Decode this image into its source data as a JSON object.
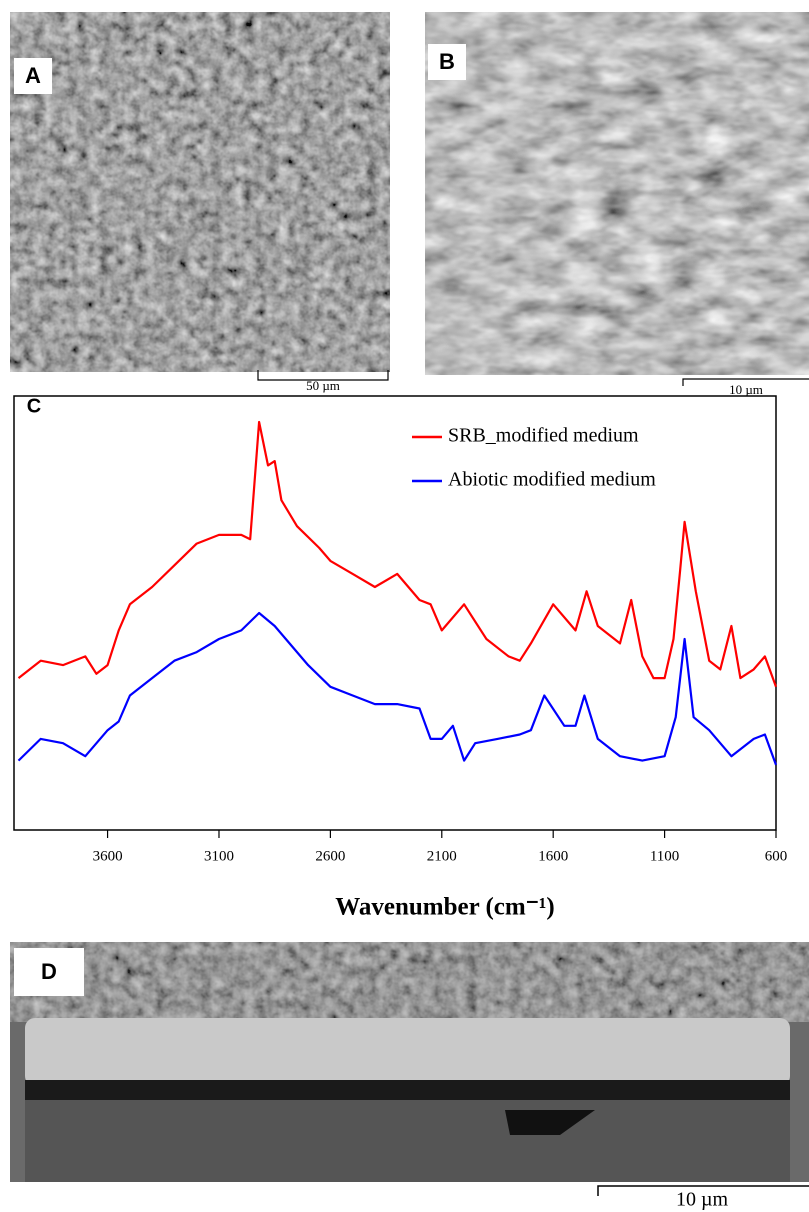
{
  "panels": [
    {
      "label": "A",
      "scale_bar": "50 µm"
    },
    {
      "label": "B",
      "scale_bar": "10 µm"
    },
    {
      "label": "D",
      "scale_bar": "10 µm"
    }
  ],
  "chart_data": {
    "type": "line",
    "panel_label": "C",
    "x_label": "Wavenumber (cm⁻¹)",
    "xlim": [
      4020,
      600
    ],
    "xticks": [
      3600,
      3100,
      2600,
      2100,
      1600,
      1100,
      600
    ],
    "ylim": [
      0,
      100
    ],
    "series": [
      {
        "name": "SRB_modified medium",
        "color": "#ff0000",
        "x": [
          4000,
          3900,
          3800,
          3700,
          3650,
          3600,
          3550,
          3500,
          3400,
          3300,
          3200,
          3100,
          3000,
          2960,
          2920,
          2880,
          2850,
          2820,
          2750,
          2650,
          2600,
          2500,
          2400,
          2300,
          2200,
          2150,
          2100,
          2000,
          1900,
          1800,
          1750,
          1700,
          1600,
          1500,
          1450,
          1400,
          1300,
          1250,
          1200,
          1150,
          1100,
          1060,
          1030,
          1010,
          960,
          900,
          850,
          800,
          760,
          700,
          650,
          600
        ],
        "values": [
          35,
          39,
          38,
          40,
          36,
          38,
          46,
          52,
          56,
          61,
          66,
          68,
          68,
          67,
          94,
          84,
          85,
          76,
          70,
          65,
          62,
          59,
          56,
          59,
          53,
          52,
          46,
          52,
          44,
          40,
          39,
          43,
          52,
          46,
          55,
          47,
          43,
          53,
          40,
          35,
          35,
          44,
          60,
          71,
          55,
          39,
          37,
          47,
          35,
          37,
          40,
          33
        ]
      },
      {
        "name": "Abiotic modified medium",
        "color": "#0000ff",
        "x": [
          4000,
          3900,
          3800,
          3700,
          3600,
          3550,
          3500,
          3400,
          3300,
          3200,
          3100,
          3000,
          2920,
          2850,
          2800,
          2700,
          2600,
          2500,
          2400,
          2300,
          2200,
          2150,
          2100,
          2050,
          2000,
          1950,
          1850,
          1750,
          1700,
          1640,
          1550,
          1500,
          1460,
          1400,
          1300,
          1200,
          1100,
          1050,
          1010,
          970,
          900,
          850,
          800,
          700,
          650,
          600
        ],
        "values": [
          16,
          21,
          20,
          17,
          23,
          25,
          31,
          35,
          39,
          41,
          44,
          46,
          50,
          47,
          44,
          38,
          33,
          31,
          29,
          29,
          28,
          21,
          21,
          24,
          16,
          20,
          21,
          22,
          23,
          31,
          24,
          24,
          31,
          21,
          17,
          16,
          17,
          26,
          44,
          26,
          23,
          20,
          17,
          21,
          22,
          15
        ]
      }
    ]
  }
}
